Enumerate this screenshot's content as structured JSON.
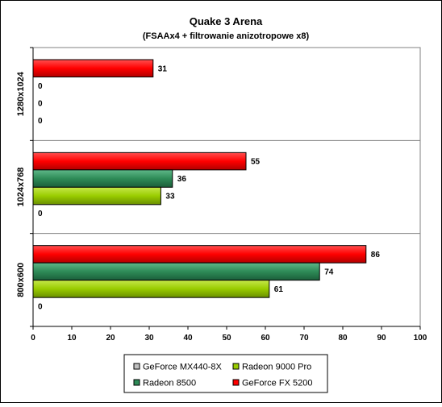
{
  "chart_data": {
    "type": "bar",
    "orientation": "horizontal",
    "title": "Quake 3 Arena",
    "subtitle": "(FSAAx4 + filtrowanie anizotropowe x8)",
    "categories": [
      "1280x1024",
      "1024x768",
      "800x600"
    ],
    "x_ticks": [
      "0",
      "10",
      "20",
      "30",
      "40",
      "50",
      "60",
      "70",
      "80",
      "90",
      "100"
    ],
    "xlim": [
      0,
      100
    ],
    "legend_position": "bottom",
    "grid": false,
    "series": [
      {
        "name": "GeForce FX 5200",
        "color": "#ff0000",
        "values": [
          31,
          55,
          86
        ],
        "labels": [
          "31",
          "55",
          "86"
        ]
      },
      {
        "name": "Radeon 8500",
        "color": "#2e8b57",
        "values": [
          0,
          36,
          74
        ],
        "labels": [
          "0",
          "36",
          "74"
        ]
      },
      {
        "name": "Radeon 9000 Pro",
        "color": "#99cc00",
        "values": [
          0,
          33,
          61
        ],
        "labels": [
          "0",
          "33",
          "61"
        ]
      },
      {
        "name": "GeForce MX440-8X",
        "color": "#c0c0c0",
        "values": [
          0,
          0,
          0
        ],
        "labels": [
          "0",
          "0",
          "0"
        ]
      }
    ],
    "legend": [
      {
        "name": "GeForce MX440-8X",
        "color": "#c0c0c0"
      },
      {
        "name": "Radeon 9000 Pro",
        "color": "#99cc00"
      },
      {
        "name": "Radeon 8500",
        "color": "#2e8b57"
      },
      {
        "name": "GeForce FX 5200",
        "color": "#ff0000"
      }
    ]
  }
}
